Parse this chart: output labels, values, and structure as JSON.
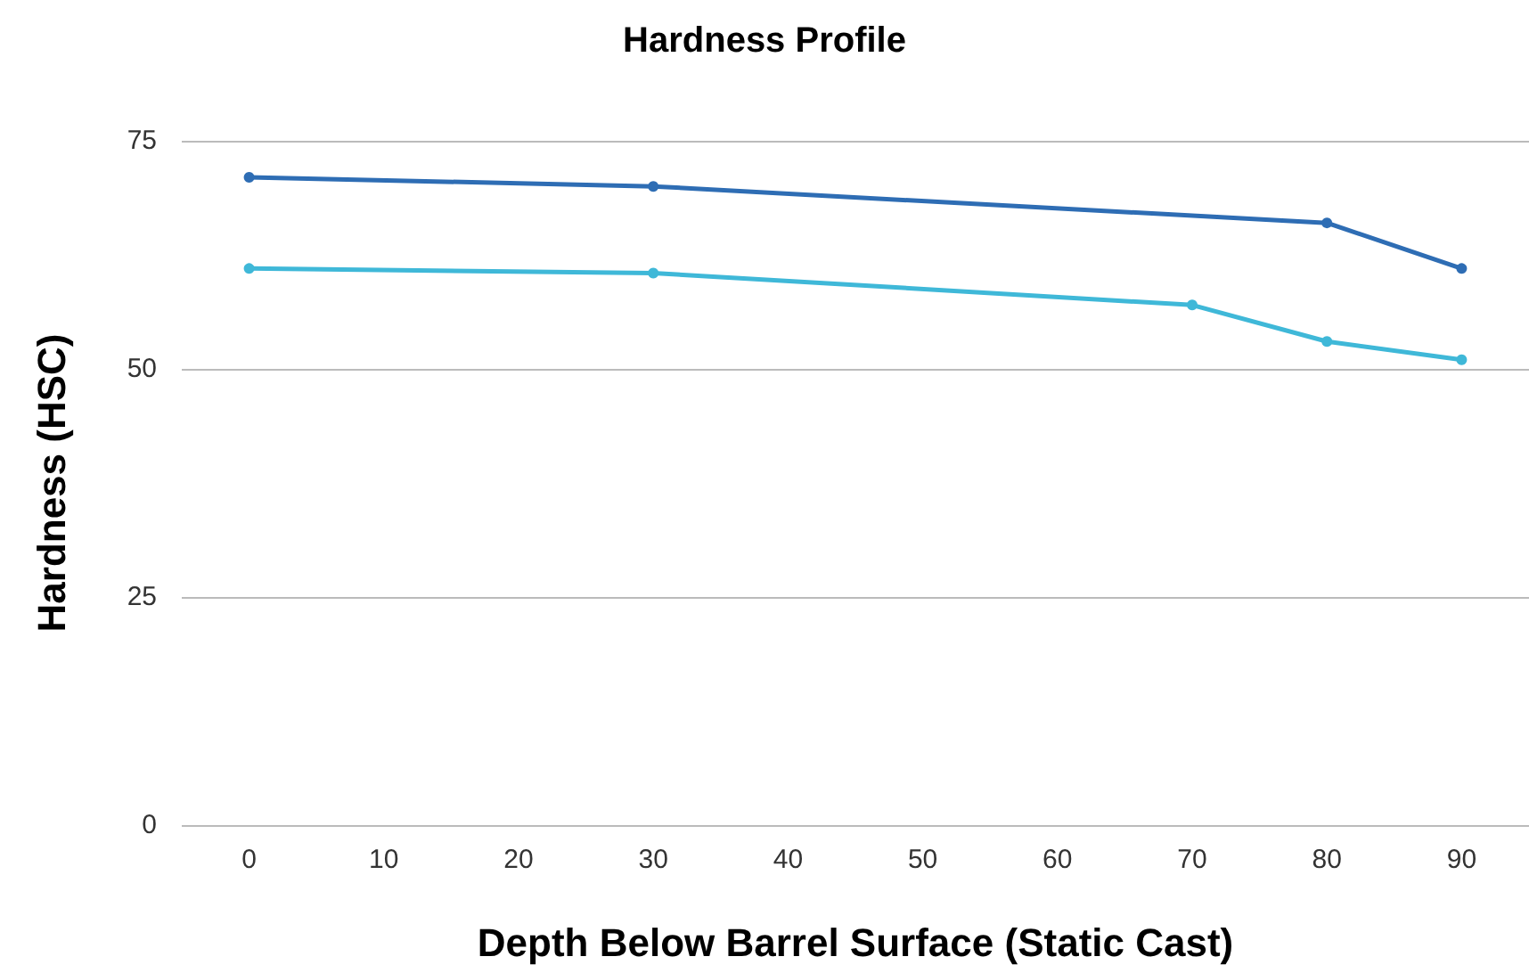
{
  "chart_data": {
    "type": "line",
    "title": "Hardness Profile",
    "xlabel": "Depth Below Barrel Surface (Static Cast)",
    "ylabel": "Hardness (HSC)",
    "series": [
      {
        "color": "#2e6db4",
        "x": [
          0,
          30,
          80,
          90
        ],
        "values": [
          71,
          70,
          66,
          61
        ]
      },
      {
        "color": "#3fb8d8",
        "x": [
          0,
          30,
          70,
          80,
          90
        ],
        "values": [
          61,
          60.5,
          57,
          53,
          51
        ]
      }
    ],
    "xlim": [
      -5,
      95
    ],
    "xticks": [
      0,
      10,
      20,
      30,
      40,
      50,
      60,
      70,
      80,
      90
    ],
    "ylim": [
      0,
      75
    ],
    "yticks": [
      0,
      25,
      50,
      75
    ],
    "grid": "y",
    "marker": "circle",
    "line_style": "solid"
  }
}
